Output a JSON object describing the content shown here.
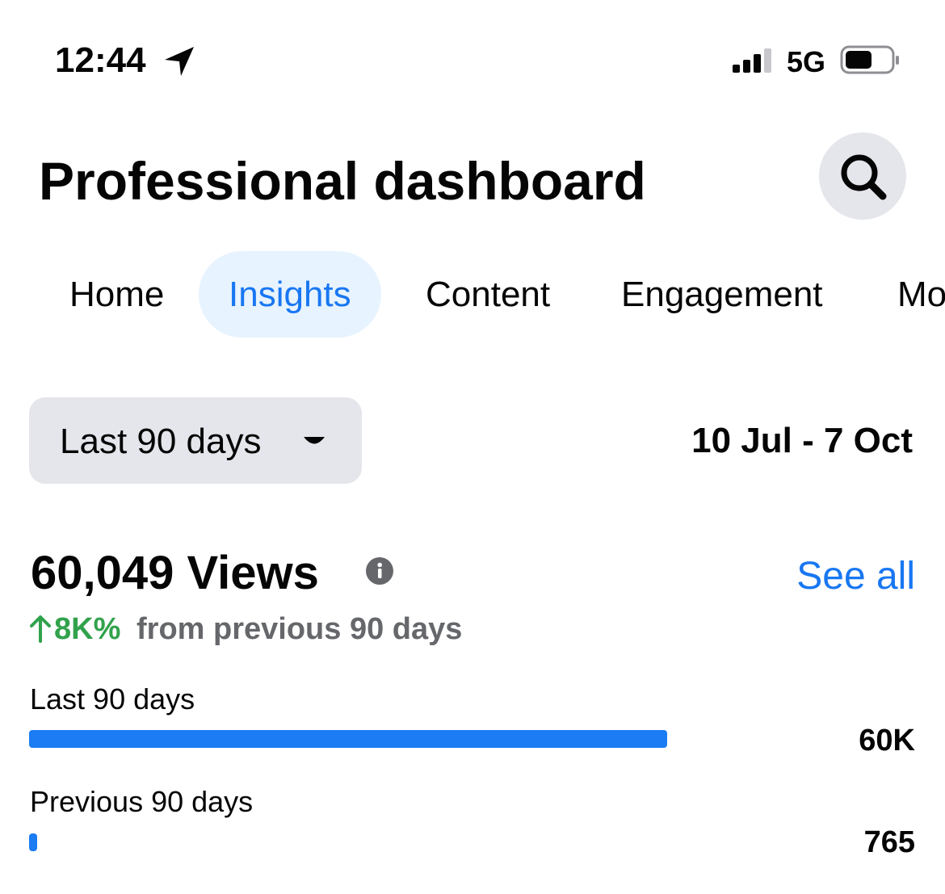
{
  "status_bar": {
    "time": "12:44",
    "network": "5G"
  },
  "header": {
    "title": "Professional dashboard"
  },
  "tabs": [
    "Home",
    "Insights",
    "Content",
    "Engagement",
    "Mo"
  ],
  "date_range": {
    "selector": "Last 90 days",
    "dates": "10 Jul - 7 Oct"
  },
  "views": {
    "total": "60,049 Views",
    "change": "8K%",
    "change_text": "from previous 90 days",
    "link": "See all"
  },
  "comparison": {
    "color": "#1b7cf3",
    "rows": [
      {
        "label": "Last 90 days",
        "value": 60049,
        "value_label": "60K"
      },
      {
        "label": "Previous 90 days",
        "value": 765
      }
    ]
  }
}
